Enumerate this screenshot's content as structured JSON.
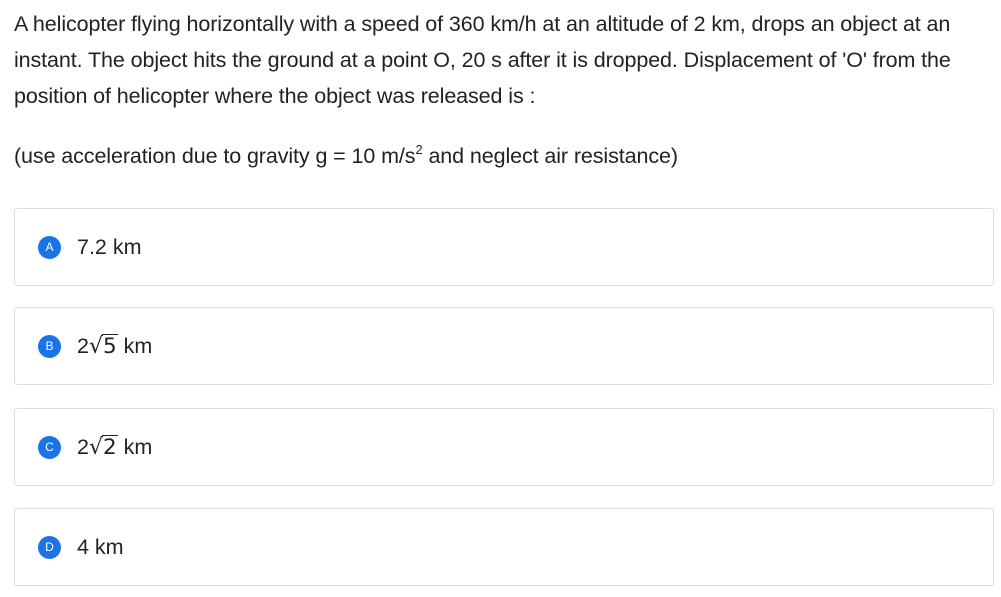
{
  "question": {
    "text": "A helicopter flying horizontally with a speed of 360 km/h at an altitude of 2 km, drops an object at an instant. The object hits the ground at a point O, 20 s after it is dropped. Displacement of 'O' from the position of helicopter where the object was released is :",
    "note_prefix": "(use acceleration due to gravity g = 10 m/s",
    "note_exponent": "2",
    "note_suffix": " and neglect air resistance)"
  },
  "options": [
    {
      "letter": "A",
      "text": "7.2 km"
    },
    {
      "letter": "B",
      "coefficient": "2",
      "radicand": "5",
      "unit": " km"
    },
    {
      "letter": "C",
      "coefficient": "2",
      "radicand": "2",
      "unit": " km"
    },
    {
      "letter": "D",
      "text": "4 km"
    }
  ],
  "colors": {
    "badge": "#1a73e8",
    "border": "#dcdcdc",
    "text": "#222222"
  }
}
